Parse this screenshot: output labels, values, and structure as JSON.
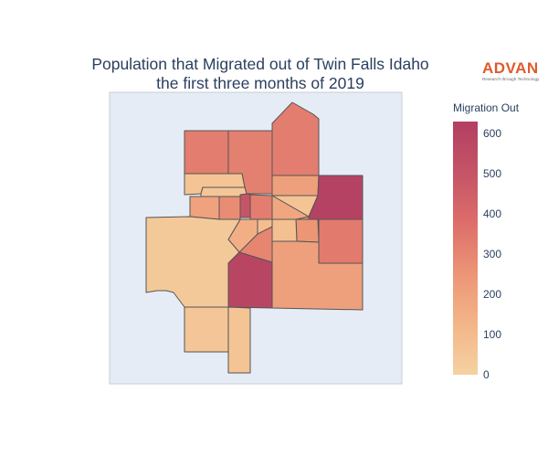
{
  "title_line1": "Population that Migrated out of Twin Falls Idaho",
  "title_line2": "the first three months of 2019",
  "logo": {
    "word": "ADVAN",
    "tagline": "Research through Technology"
  },
  "colorbar": {
    "title": "Migration Out",
    "range": [
      0,
      630
    ],
    "ticks": [
      "0",
      "100",
      "200",
      "300",
      "400",
      "500",
      "600"
    ],
    "colors": [
      "#f5d2a1",
      "#f3b588",
      "#ec9576",
      "#dd6e6a",
      "#c45466",
      "#b33f62"
    ]
  },
  "colors": {
    "map_background": "#e5ecf6",
    "region_border": "#555555",
    "title_text": "#2a3f5f"
  },
  "regions": [
    {
      "id": "northwest-upper",
      "value": 330
    },
    {
      "id": "north-center",
      "value": 320
    },
    {
      "id": "north-tall",
      "value": 330
    },
    {
      "id": "northwest-small",
      "value": 60
    },
    {
      "id": "northwest-strip",
      "value": 50
    },
    {
      "id": "north-center-small",
      "value": 210
    },
    {
      "id": "east-top-small",
      "value": 60
    },
    {
      "id": "northeast-large",
      "value": 610
    },
    {
      "id": "west-small-a",
      "value": 200
    },
    {
      "id": "west-small-b",
      "value": 280
    },
    {
      "id": "center-dark-sliver",
      "value": 500
    },
    {
      "id": "center-a",
      "value": 330
    },
    {
      "id": "center-b",
      "value": 260
    },
    {
      "id": "center-east-a",
      "value": 180
    },
    {
      "id": "center-east-b",
      "value": 250
    },
    {
      "id": "center-wedge",
      "value": 300
    },
    {
      "id": "center-small-light",
      "value": 150
    },
    {
      "id": "center-east-light",
      "value": 80
    },
    {
      "id": "center-east-sliver",
      "value": 90
    },
    {
      "id": "west-large",
      "value": 40
    },
    {
      "id": "east-mid",
      "value": 340
    },
    {
      "id": "south-center-large",
      "value": 590
    },
    {
      "id": "southeast-large",
      "value": 210
    },
    {
      "id": "south-west",
      "value": 50
    },
    {
      "id": "south-strip",
      "value": 60
    }
  ]
}
